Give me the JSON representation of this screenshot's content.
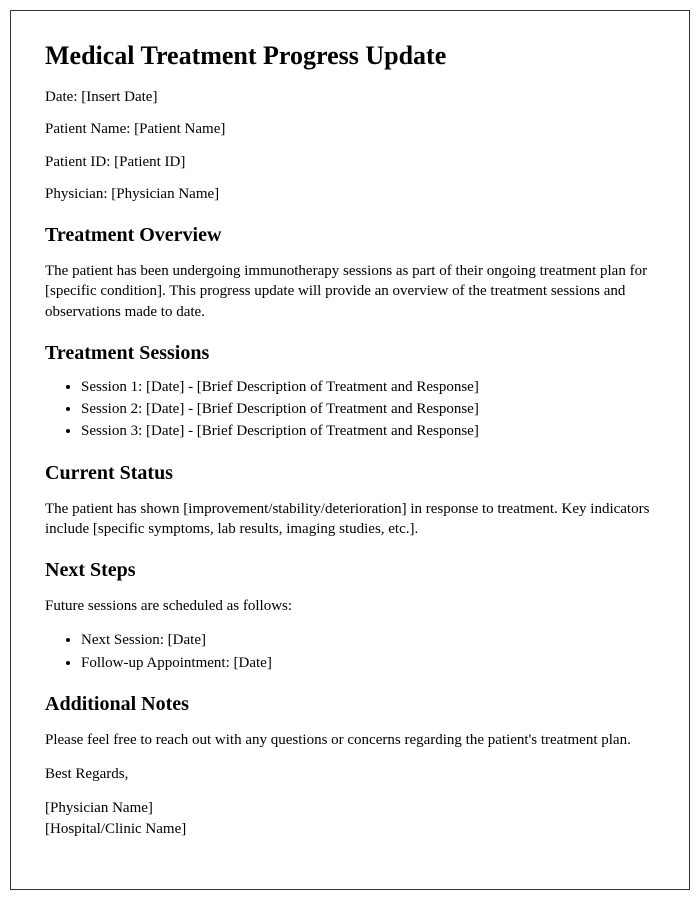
{
  "title": "Medical Treatment Progress Update",
  "meta": {
    "date_label": "Date:",
    "date_value": "[Insert Date]",
    "patient_name_label": "Patient Name:",
    "patient_name_value": "[Patient Name]",
    "patient_id_label": "Patient ID:",
    "patient_id_value": "[Patient ID]",
    "physician_label": "Physician:",
    "physician_value": "[Physician Name]"
  },
  "overview": {
    "heading": "Treatment Overview",
    "body": "The patient has been undergoing immunotherapy sessions as part of their ongoing treatment plan for [specific condition]. This progress update will provide an overview of the treatment sessions and observations made to date."
  },
  "sessions": {
    "heading": "Treatment Sessions",
    "items": [
      "Session 1: [Date] - [Brief Description of Treatment and Response]",
      "Session 2: [Date] - [Brief Description of Treatment and Response]",
      "Session 3: [Date] - [Brief Description of Treatment and Response]"
    ]
  },
  "status": {
    "heading": "Current Status",
    "body": "The patient has shown [improvement/stability/deterioration] in response to treatment. Key indicators include [specific symptoms, lab results, imaging studies, etc.]."
  },
  "next_steps": {
    "heading": "Next Steps",
    "intro": "Future sessions are scheduled as follows:",
    "items": [
      "Next Session: [Date]",
      "Follow-up Appointment: [Date]"
    ]
  },
  "notes": {
    "heading": "Additional Notes",
    "body": "Please feel free to reach out with any questions or concerns regarding the patient's treatment plan.",
    "closing": "Best Regards,",
    "signature": [
      "[Physician Name]",
      "[Hospital/Clinic Name]"
    ]
  }
}
